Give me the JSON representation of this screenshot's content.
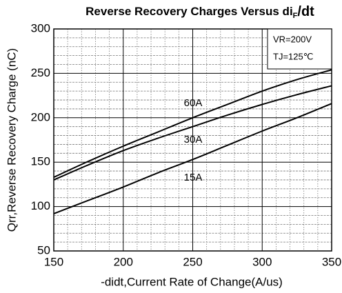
{
  "chart_data": {
    "type": "line",
    "title": [
      "Reverse Recovery Charges Versus di",
      "F",
      "/dt"
    ],
    "xlabel": "-didt,Current Rate of Change(A/us)",
    "ylabel": "Qrr,Reverse Recovery Charge (nC)",
    "annotations": [
      "VR=200V",
      "TJ=125℃"
    ],
    "x": [
      150,
      175,
      200,
      225,
      250,
      275,
      300,
      325,
      350
    ],
    "series": [
      {
        "name": "60A",
        "color": "#000000",
        "values": [
          133,
          151,
          168,
          184,
          200,
          215,
          230,
          243,
          254
        ]
      },
      {
        "name": "30A",
        "color": "#000000",
        "values": [
          130,
          147,
          163,
          177,
          190,
          203,
          215,
          226,
          236
        ]
      },
      {
        "name": "15A",
        "color": "#000000",
        "values": [
          92,
          107,
          122,
          138,
          153,
          169,
          185,
          200,
          216
        ]
      }
    ],
    "xlim": [
      150,
      350
    ],
    "ylim": [
      50,
      300
    ],
    "xticks": [
      150,
      200,
      250,
      300,
      350
    ],
    "yticks": [
      50,
      100,
      150,
      200,
      250,
      300
    ],
    "minor_xticks": [
      160,
      170,
      180,
      190,
      210,
      220,
      230,
      240,
      260,
      270,
      280,
      290,
      310,
      320,
      330,
      340
    ],
    "minor_yticks": [
      60,
      70,
      80,
      90,
      110,
      120,
      130,
      140,
      160,
      170,
      180,
      190,
      210,
      220,
      230,
      240,
      260,
      270,
      280,
      290
    ],
    "grid": true
  }
}
